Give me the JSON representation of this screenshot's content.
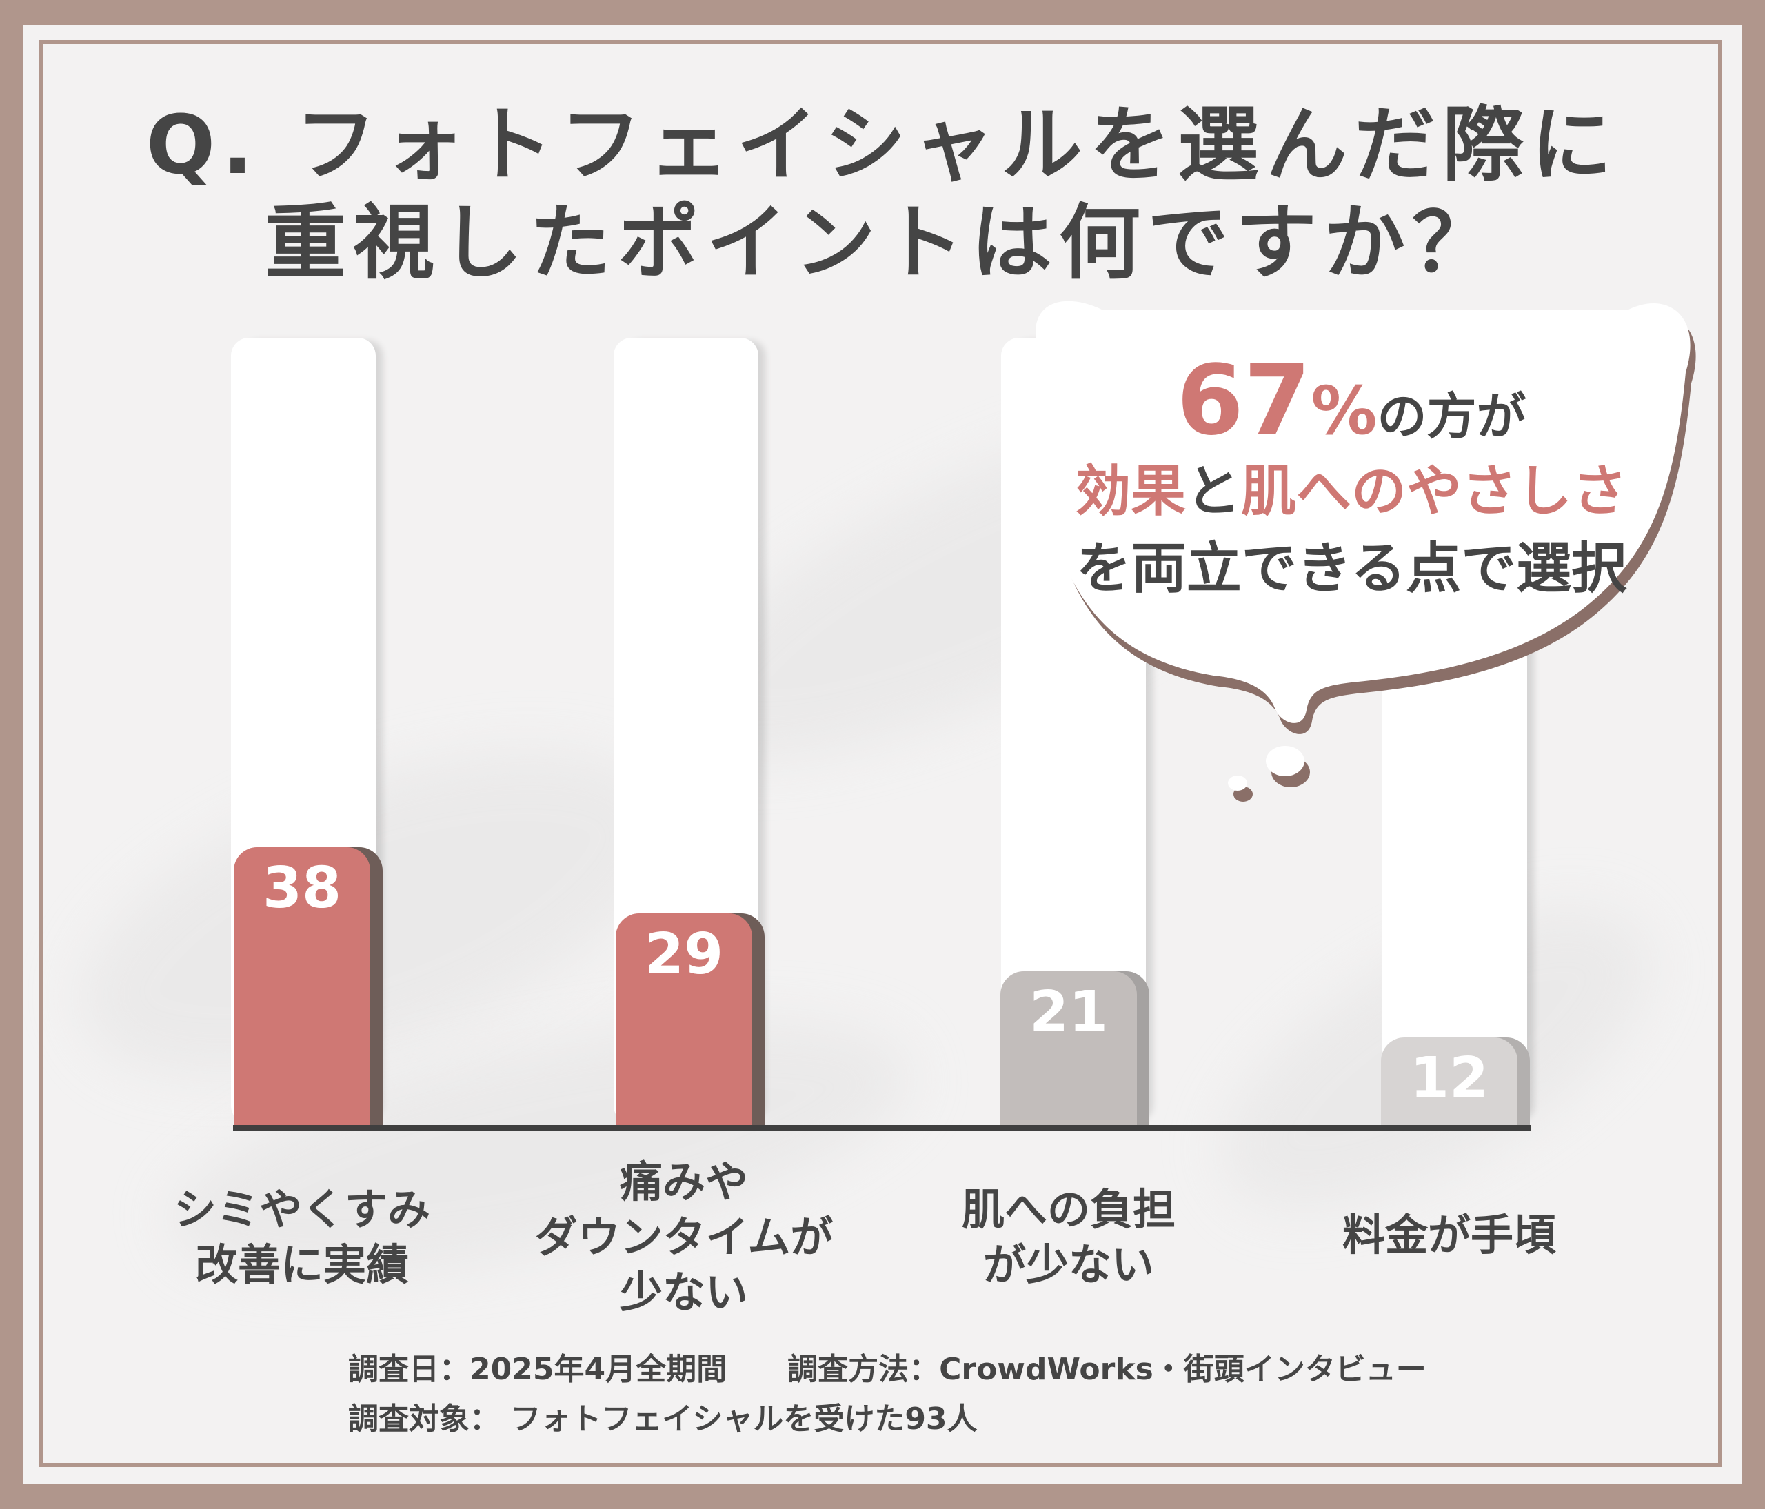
{
  "title": {
    "line1": "Q. フォトフェイシャルを選んだ際に",
    "line2": "重視したポイントは何ですか？"
  },
  "chart_data": {
    "type": "bar",
    "title": "Q. フォトフェイシャルを選んだ際に重視したポイントは何ですか？",
    "categories": [
      "シミやくすみ\n改善に実績",
      "痛みや\nダウンタイムが\n少ない",
      "肌への負担\nが少ない",
      "料金が手頃"
    ],
    "values": [
      38,
      29,
      21,
      12
    ],
    "ylim": [
      0,
      80
    ],
    "grid": false,
    "legend": "none",
    "colors": [
      "#cf7874",
      "#cf7874",
      "#c2bdbb",
      "#d7d4d3"
    ],
    "shadow_colors": [
      "#6e5d58",
      "#6e5d58",
      "#a5a2a1",
      "#b3b0af"
    ]
  },
  "callout": {
    "percent_number": "67",
    "percent_sign": "%",
    "line1_rest": "の方が",
    "line2_a": "効果",
    "line2_b": "と",
    "line2_c": "肌へのやさしさ",
    "line3": "を両立できる点で選択",
    "accent_color": "#cf7874",
    "text_color": "#454545"
  },
  "footnotes": {
    "line1": "調査日：2025年4月全期間　　調査方法：CrowdWorks・街頭インタビュー",
    "line2": "調査対象：  フォトフェイシャルを受けた93人"
  }
}
